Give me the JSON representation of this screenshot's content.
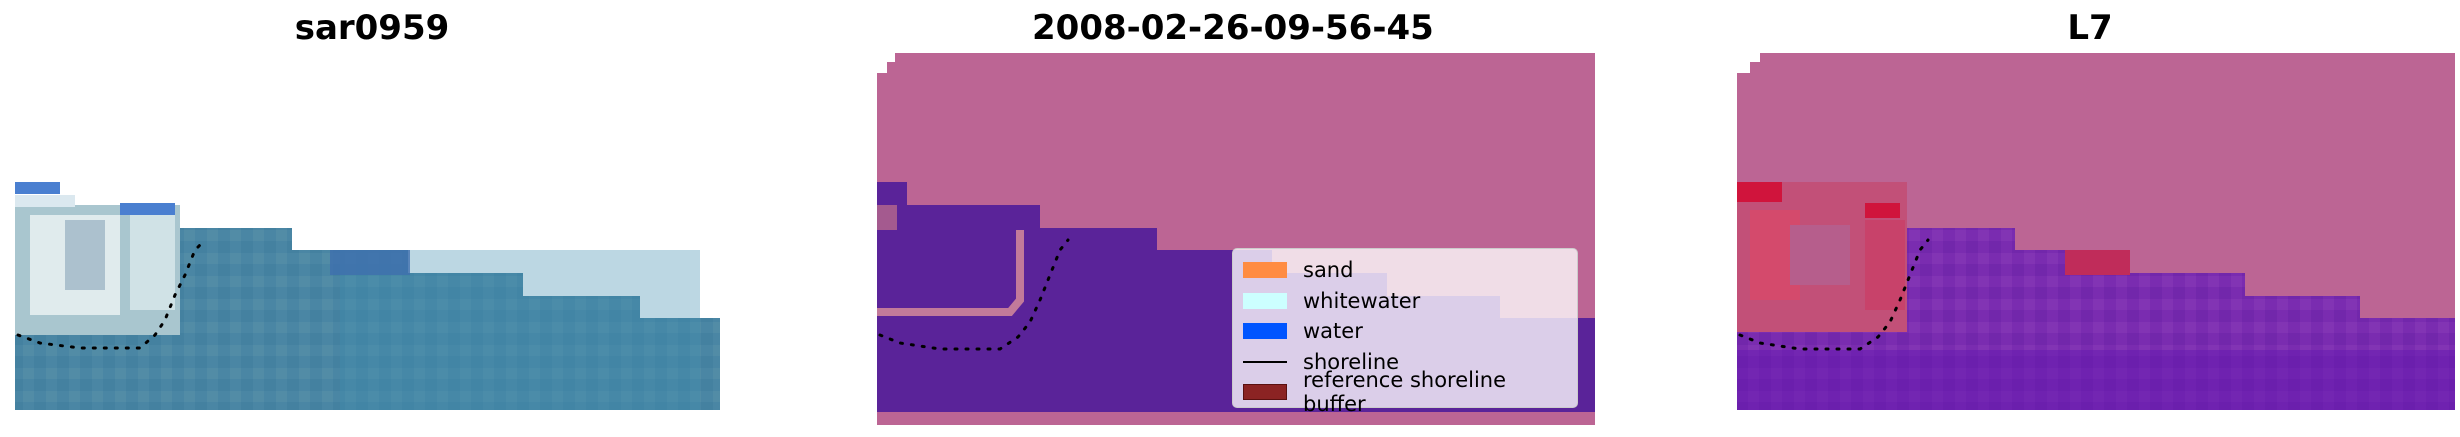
{
  "panels": [
    {
      "title": "sar0959"
    },
    {
      "title": "2008-02-26-09-56-45"
    },
    {
      "title": "L7"
    }
  ],
  "legend": {
    "items": [
      {
        "label": "sand",
        "color": "#ff8c42"
      },
      {
        "label": "whitewater",
        "color": "#ccffff"
      },
      {
        "label": "water",
        "color": "#0055ff"
      },
      {
        "label": "shoreline",
        "color": "#000000"
      },
      {
        "label": "reference shoreline buffer",
        "color": "#8b2323"
      }
    ]
  },
  "colors": {
    "classified_background": "#bc6594",
    "classified_water": "#5a2399",
    "index_background": "#bc6594",
    "index_water": "#7426ad",
    "index_land": "#d4254f",
    "rgb_water": "#4784a3"
  }
}
